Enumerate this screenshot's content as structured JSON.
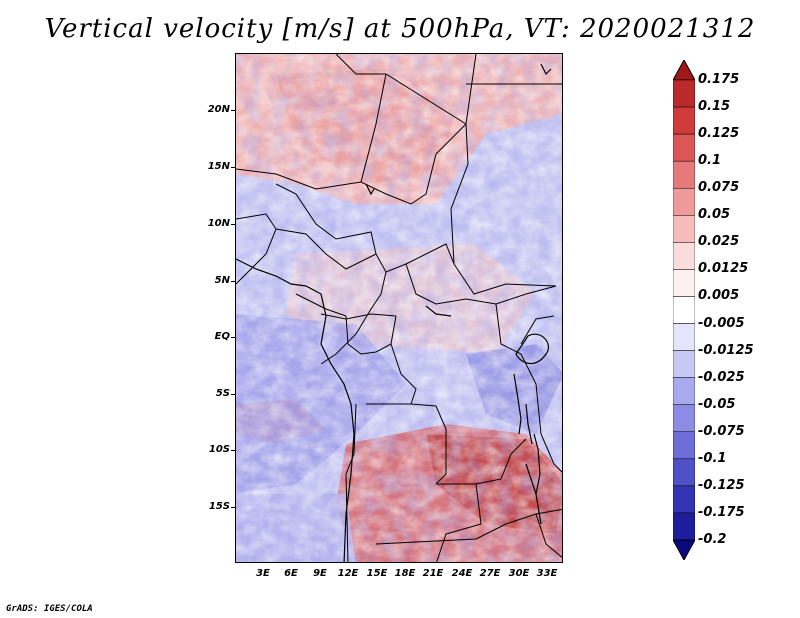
{
  "title": "Vertical velocity [m/s] at 500hPa, VT: 2020021312",
  "credit": "GrADS: IGES/COLA",
  "map": {
    "lat_labels": [
      "20N",
      "15N",
      "10N",
      "5N",
      "EQ",
      "5S",
      "10S",
      "15S"
    ],
    "lon_labels": [
      "3E",
      "6E",
      "9E",
      "12E",
      "15E",
      "18E",
      "21E",
      "24E",
      "27E",
      "30E",
      "33E"
    ]
  },
  "colorbar": {
    "levels": [
      "0.175",
      "0.15",
      "0.125",
      "0.1",
      "0.075",
      "0.05",
      "0.025",
      "0.0125",
      "0.005",
      "-0.005",
      "-0.0125",
      "-0.025",
      "-0.05",
      "-0.075",
      "-0.1",
      "-0.125",
      "-0.175",
      "-0.2"
    ],
    "colors": [
      "#a01818",
      "#bb2a2a",
      "#d03b3b",
      "#dc5656",
      "#e67a7a",
      "#ee9a9a",
      "#f5bcbc",
      "#fadcdc",
      "#fdf0f0",
      "#ffffff",
      "#e4e4fb",
      "#c8c8f5",
      "#a9a9ee",
      "#8c8ce4",
      "#6e6ed8",
      "#5050c8",
      "#3434b4",
      "#1e1e9c",
      "#0a0a7e"
    ]
  }
}
